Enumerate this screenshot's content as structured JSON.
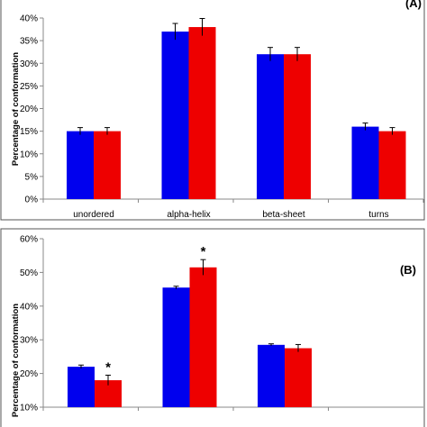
{
  "colors": {
    "series1": "#0000ee",
    "series2": "#ee0000"
  },
  "chart_data": [
    {
      "type": "bar",
      "panel_label": "(A)",
      "ylabel": "Percentage of conformation",
      "xlabel": "",
      "categories": [
        "unordered",
        "alpha-helix",
        "beta-sheet",
        "turns"
      ],
      "series": [
        {
          "values": [
            15,
            37,
            32,
            16
          ],
          "errors": [
            0.8,
            1.8,
            1.5,
            0.8
          ]
        },
        {
          "values": [
            15,
            38,
            32,
            15
          ],
          "errors": [
            0.8,
            1.9,
            1.5,
            0.8
          ]
        }
      ],
      "ylim": [
        0,
        40
      ],
      "yticks": [
        0,
        5,
        10,
        15,
        20,
        25,
        30,
        35,
        40
      ],
      "ytick_labels": [
        "0%",
        "5%",
        "10%",
        "15%",
        "20%",
        "25%",
        "30%",
        "35%",
        "40%"
      ],
      "annotations": [],
      "grid": false
    },
    {
      "type": "bar",
      "panel_label": "(B)",
      "ylabel": "Percentage of conformation",
      "xlabel": "",
      "categories": [
        "",
        "",
        ""
      ],
      "series": [
        {
          "values": [
            22,
            45.5,
            28.5
          ],
          "errors": [
            0.5,
            0.4,
            0.3
          ]
        },
        {
          "values": [
            18,
            51.5,
            27.5
          ],
          "errors": [
            1.5,
            2.3,
            1.1
          ]
        }
      ],
      "ylim": [
        10,
        60
      ],
      "yticks": [
        10,
        20,
        30,
        40,
        50,
        60
      ],
      "ytick_labels": [
        "10%",
        "20%",
        "30%",
        "40%",
        "50%",
        "60%"
      ],
      "annotations": [
        {
          "text": "*",
          "category_index": 0,
          "series_index": 1
        },
        {
          "text": "*",
          "category_index": 1,
          "series_index": 1
        }
      ],
      "grid": false
    }
  ]
}
